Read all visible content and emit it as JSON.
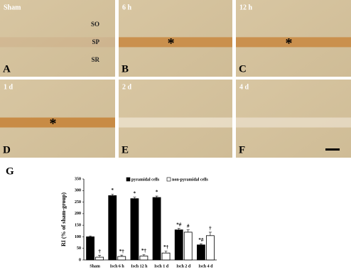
{
  "panels": [
    {
      "label": "A",
      "title": "Sham",
      "layers": [
        "SO",
        "SP",
        "SR"
      ]
    },
    {
      "label": "B",
      "title": "6 h",
      "marker": "*"
    },
    {
      "label": "C",
      "title": "12 h",
      "marker": "*"
    },
    {
      "label": "D",
      "title": "1 d",
      "marker": "*"
    },
    {
      "label": "E",
      "title": "2 d"
    },
    {
      "label": "F",
      "title": "4 d"
    }
  ],
  "chart_data": {
    "type": "bar",
    "panel_label": "G",
    "y_label": "RI (% of sham-group)",
    "categories": [
      "Sham",
      "Isch 6 h",
      "Isch 12 h",
      "Isch 1 d",
      "Isch 2 d",
      "Isch 4 d"
    ],
    "series": [
      {
        "name": "pyramidal cells",
        "color": "#000000",
        "values": [
          100,
          278,
          265,
          270,
          130,
          65
        ],
        "errors": [
          4,
          6,
          6,
          6,
          6,
          5
        ],
        "annotations": [
          null,
          "*",
          "*",
          "*",
          "*#",
          "*#"
        ]
      },
      {
        "name": "non-pyramidal cells",
        "color": "#ffffff",
        "values": [
          12,
          15,
          17,
          30,
          120,
          105
        ],
        "errors": [
          8,
          6,
          6,
          8,
          10,
          15
        ],
        "annotations": [
          "†",
          "*†",
          "*†",
          "*†",
          "#",
          "†"
        ]
      }
    ],
    "ylim": [
      0,
      350
    ],
    "yticks": [
      0,
      50,
      100,
      150,
      200,
      250,
      300,
      350
    ]
  }
}
